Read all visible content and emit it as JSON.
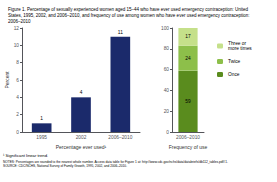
{
  "chart_data": [
    {
      "type": "bar",
      "title": "Figure 1. Percentage of sexually experienced women aged 15–44 who have ever used emergency contraception: United\nStates, 1995, 2002, and 2006–2010, and frequency of use among women who have ever used emergency contraception:\n2006–2010",
      "categories": [
        "1995",
        "2002",
        "2006–2010"
      ],
      "values": [
        1,
        4,
        11
      ],
      "color": "#1b2a6b",
      "xlabel": "Percentage ever used¹",
      "ylabel": "Percent",
      "ylim": [
        0,
        12
      ],
      "yticks": [
        0,
        2,
        4,
        6,
        8,
        10,
        12
      ],
      "data_labels": true,
      "grid": false,
      "annotations": [
        "¹ Significant linear trend.",
        "NOTES: Percentages are rounded to the nearest whole number. Access data table for Figure 1 at: http://www.cdc.gov/nchs/data/databriefs/db112_tables.pdf#1.\nSOURCE: CDC/NCHS, National Survey of Family Growth, 1995, 2002, and 2006–2010."
      ]
    },
    {
      "type": "bar",
      "stacked": true,
      "categories": [
        "2006–2010"
      ],
      "series": [
        {
          "name": "Once",
          "color": "#5a8c1e",
          "values": [
            59
          ]
        },
        {
          "name": "Twice",
          "color": "#8dbf4a",
          "values": [
            24
          ]
        },
        {
          "name": "Three or\nmore times",
          "color": "#c5e08a",
          "values": [
            17
          ]
        }
      ],
      "xlabel": "Frequency of use",
      "ylim": [
        0,
        100
      ],
      "yticks": [
        0,
        20,
        40,
        60,
        80,
        100
      ],
      "data_labels": true,
      "grid": false,
      "legend": "right"
    }
  ]
}
